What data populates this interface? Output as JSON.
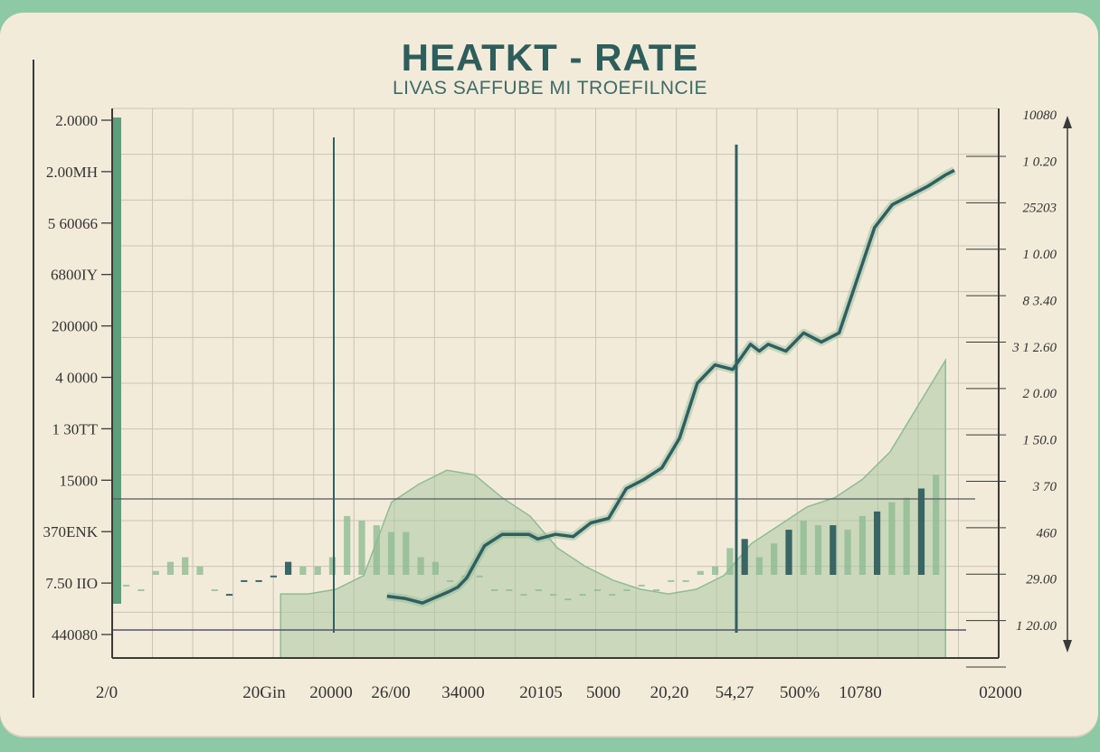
{
  "chart_data": {
    "type": "line",
    "title": "HEATKT - RATE",
    "subtitle": "LIVAS SAFFUBE MI TROEFILNCIE",
    "y_left_ticks": [
      "2.0000",
      "2.00MH",
      "5 60066",
      "6800IY",
      "200000",
      "4 0000",
      "1 30TT",
      "15000",
      "370ENK",
      "7.50 IIO",
      "440080"
    ],
    "y_right_ticks": [
      "10080",
      "1 0.20",
      "25203",
      "1 0.00",
      "8 3.40",
      "3 1 2.60",
      "2 0.00",
      "1 50.0",
      "3 70",
      "460",
      "29.00",
      "1 20.00"
    ],
    "x_ticks": [
      "2/0",
      "20Gin",
      "20000",
      "26/00",
      "34000",
      "20105",
      "5000",
      "20,20",
      "54,27",
      "500%",
      "10780",
      "02000"
    ],
    "grid": true,
    "colors": {
      "line": "#2f5f61",
      "bar_dark": "#2f5f61",
      "bar_light": "#8ebc94",
      "area": "#a9c8a2",
      "axis": "#3a3a3a",
      "grid": "#c9c4b8"
    },
    "series": [
      {
        "kind": "line",
        "x": [
          0.31,
          0.33,
          0.35,
          0.38,
          0.39,
          0.4,
          0.42,
          0.44,
          0.47,
          0.48,
          0.5,
          0.52,
          0.54,
          0.56,
          0.58,
          0.6,
          0.62,
          0.64,
          0.66,
          0.68,
          0.7,
          0.72,
          0.73,
          0.74,
          0.76,
          0.78,
          0.8,
          0.82,
          0.84,
          0.86,
          0.88,
          0.9,
          0.92,
          0.94,
          0.95
        ],
        "y": [
          0.27,
          0.26,
          0.24,
          0.29,
          0.31,
          0.35,
          0.49,
          0.54,
          0.54,
          0.52,
          0.54,
          0.53,
          0.59,
          0.61,
          0.74,
          0.78,
          0.83,
          0.96,
          1.2,
          1.28,
          1.26,
          1.37,
          1.34,
          1.37,
          1.34,
          1.42,
          1.38,
          1.42,
          1.65,
          1.88,
          1.98,
          2.02,
          2.06,
          2.11,
          2.13
        ]
      },
      {
        "kind": "bars",
        "values": [
          0.32,
          0.3,
          0.38,
          0.42,
          0.44,
          0.4,
          0.3,
          0.28,
          0.34,
          0.34,
          0.36,
          0.42,
          0.4,
          0.4,
          0.44,
          0.62,
          0.6,
          0.58,
          0.55,
          0.55,
          0.44,
          0.42,
          0.34,
          0.36,
          0.36,
          0.3,
          0.3,
          0.28,
          0.3,
          0.28,
          0.26,
          0.28,
          0.3,
          0.28,
          0.3,
          0.32,
          0.3,
          0.34,
          0.34,
          0.38,
          0.4,
          0.48,
          0.52,
          0.44,
          0.5,
          0.56,
          0.6,
          0.58,
          0.58,
          0.56,
          0.62,
          0.64,
          0.68,
          0.7,
          0.74,
          0.8
        ]
      },
      {
        "kind": "area",
        "y": [
          0.28,
          0.28,
          0.3,
          0.36,
          0.68,
          0.76,
          0.82,
          0.8,
          0.7,
          0.62,
          0.48,
          0.4,
          0.34,
          0.3,
          0.28,
          0.3,
          0.36,
          0.5,
          0.58,
          0.66,
          0.7,
          0.78,
          0.9,
          1.1,
          1.3
        ]
      }
    ]
  }
}
